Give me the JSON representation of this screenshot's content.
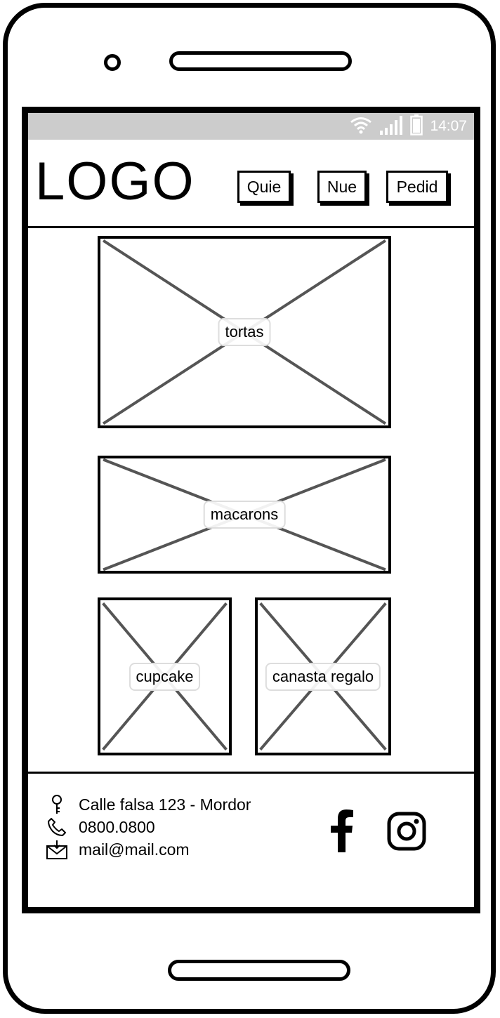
{
  "status_bar": {
    "time": "14:07",
    "icons": [
      "wifi-icon",
      "signal-icon",
      "battery-icon"
    ]
  },
  "header": {
    "logo": "LOGO",
    "nav": [
      {
        "label": "Quie"
      },
      {
        "label": "Nue"
      },
      {
        "label": "Pedid"
      }
    ]
  },
  "products": [
    {
      "label": "tortas"
    },
    {
      "label": "macarons"
    },
    {
      "label": "cupcake"
    },
    {
      "label": "canasta regalo"
    }
  ],
  "footer": {
    "address": "Calle falsa 123 - Mordor",
    "phone": "0800.0800",
    "email": "mail@mail.com",
    "social": [
      "facebook-icon",
      "instagram-icon"
    ]
  }
}
